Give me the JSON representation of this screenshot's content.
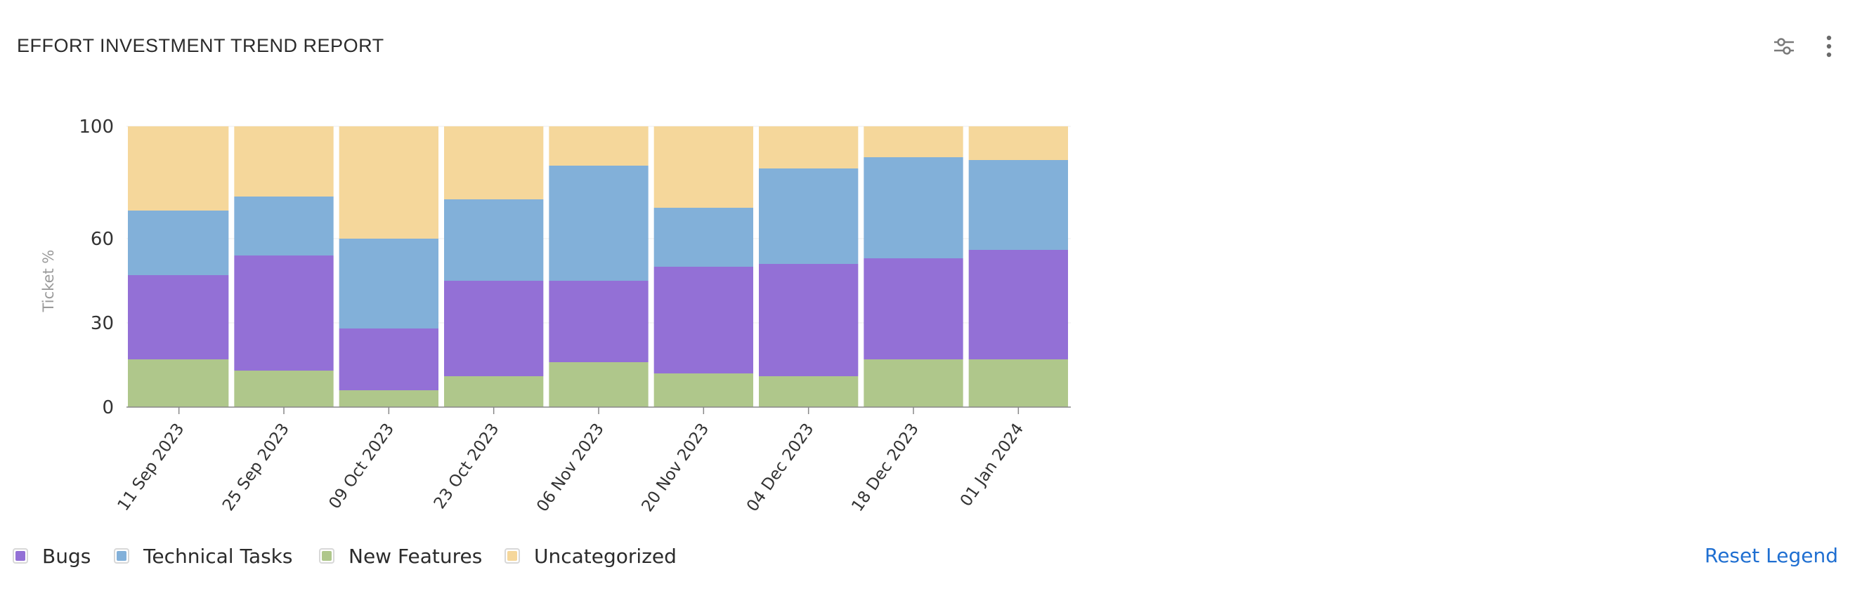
{
  "header": {
    "title": "EFFORT INVESTMENT TREND REPORT",
    "settings_icon": "sliders-icon",
    "more_icon": "more-vertical-icon"
  },
  "legend": {
    "items": [
      {
        "label": "Bugs",
        "color": "#9370d6"
      },
      {
        "label": "Technical Tasks",
        "color": "#82b0d9"
      },
      {
        "label": "New Features",
        "color": "#afc78b"
      },
      {
        "label": "Uncategorized",
        "color": "#f5d79b"
      }
    ],
    "reset_label": "Reset Legend"
  },
  "colors": {
    "new_features": "#afc78b",
    "bugs": "#9370d6",
    "technical_tasks": "#82b0d9",
    "uncategorized": "#f5d79b",
    "axis": "#aaaaaa",
    "reset_link": "#1f6fd1"
  },
  "chart_data": {
    "type": "bar",
    "stacked": true,
    "ylabel": "Ticket %",
    "xlabel": "",
    "ylim": [
      0,
      100
    ],
    "yticks": [
      0,
      30,
      60,
      100
    ],
    "categories": [
      "11 Sep 2023",
      "25 Sep 2023",
      "09 Oct 2023",
      "23 Oct 2023",
      "06 Nov 2023",
      "20 Nov 2023",
      "04 Dec 2023",
      "18 Dec 2023",
      "01 Jan 2024"
    ],
    "series": [
      {
        "name": "New Features",
        "values": [
          17,
          13,
          6,
          11,
          16,
          12,
          11,
          17,
          17
        ]
      },
      {
        "name": "Bugs",
        "values": [
          30,
          41,
          22,
          34,
          29,
          38,
          40,
          36,
          39
        ]
      },
      {
        "name": "Technical Tasks",
        "values": [
          23,
          21,
          32,
          29,
          41,
          21,
          34,
          36,
          32
        ]
      },
      {
        "name": "Uncategorized",
        "values": [
          30,
          25,
          40,
          26,
          14,
          29,
          15,
          11,
          12
        ]
      }
    ],
    "grid": true,
    "legend_position": "bottom-left"
  }
}
